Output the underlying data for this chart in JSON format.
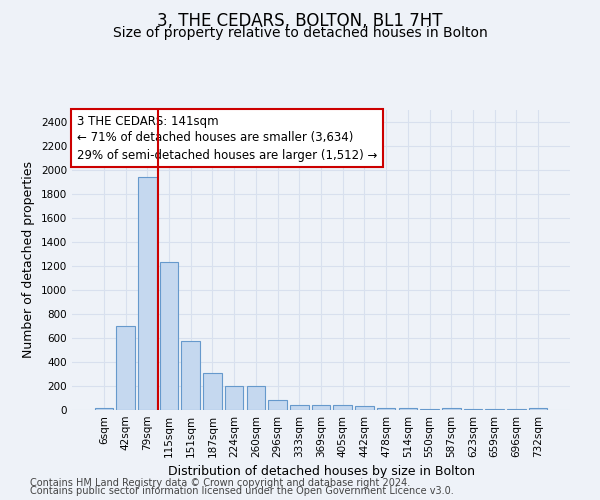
{
  "title": "3, THE CEDARS, BOLTON, BL1 7HT",
  "subtitle": "Size of property relative to detached houses in Bolton",
  "xlabel": "Distribution of detached houses by size in Bolton",
  "ylabel": "Number of detached properties",
  "footer_line1": "Contains HM Land Registry data © Crown copyright and database right 2024.",
  "footer_line2": "Contains public sector information licensed under the Open Government Licence v3.0.",
  "bar_labels": [
    "6sqm",
    "42sqm",
    "79sqm",
    "115sqm",
    "151sqm",
    "187sqm",
    "224sqm",
    "260sqm",
    "296sqm",
    "333sqm",
    "369sqm",
    "405sqm",
    "442sqm",
    "478sqm",
    "514sqm",
    "550sqm",
    "587sqm",
    "623sqm",
    "659sqm",
    "696sqm",
    "732sqm"
  ],
  "bar_values": [
    15,
    700,
    1940,
    1230,
    575,
    305,
    200,
    200,
    80,
    45,
    38,
    38,
    30,
    20,
    20,
    10,
    20,
    5,
    5,
    5,
    20
  ],
  "bar_color": "#c5d8ef",
  "bar_edge_color": "#6699cc",
  "ylim": [
    0,
    2500
  ],
  "yticks": [
    0,
    200,
    400,
    600,
    800,
    1000,
    1200,
    1400,
    1600,
    1800,
    2000,
    2200,
    2400
  ],
  "vline_x": 2.5,
  "vline_color": "#cc0000",
  "annotation_line1": "3 THE CEDARS: 141sqm",
  "annotation_line2": "← 71% of detached houses are smaller (3,634)",
  "annotation_line3": "29% of semi-detached houses are larger (1,512) →",
  "annotation_box_color": "#ffffff",
  "annotation_border_color": "#cc0000",
  "background_color": "#eef2f8",
  "grid_color": "#d8e0ee",
  "title_fontsize": 12,
  "subtitle_fontsize": 10,
  "label_fontsize": 9,
  "tick_fontsize": 7.5,
  "annotation_fontsize": 8.5,
  "footer_fontsize": 7
}
